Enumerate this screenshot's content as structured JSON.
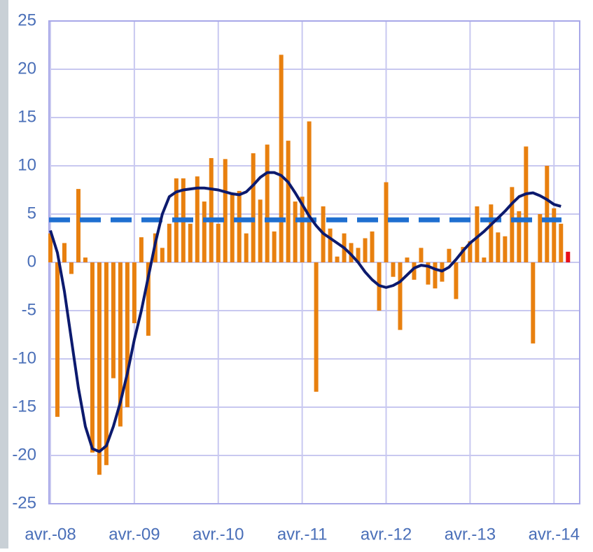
{
  "chart_data": {
    "type": "bar",
    "categories": [
      "avr.-08",
      null,
      null,
      null,
      null,
      null,
      null,
      null,
      null,
      null,
      null,
      null,
      "avr.-09",
      null,
      null,
      null,
      null,
      null,
      null,
      null,
      null,
      null,
      null,
      null,
      "avr.-10",
      null,
      null,
      null,
      null,
      null,
      null,
      null,
      null,
      null,
      null,
      null,
      "avr.-11",
      null,
      null,
      null,
      null,
      null,
      null,
      null,
      null,
      null,
      null,
      null,
      "avr.-12",
      null,
      null,
      null,
      null,
      null,
      null,
      null,
      null,
      null,
      null,
      null,
      "avr.-13",
      null,
      null,
      null,
      null,
      null,
      null,
      null,
      null,
      null,
      null,
      null,
      "avr.-14",
      null,
      null
    ],
    "series": [
      {
        "type": "bar",
        "color": "#e8800f",
        "values": [
          3,
          -16,
          2,
          -1.2,
          7.6,
          0.5,
          -19.7,
          -22,
          -21,
          -12,
          -17,
          -15,
          -6.3,
          2.6,
          -7.6,
          3,
          1.5,
          4,
          8.7,
          8.7,
          4,
          8.9,
          6.3,
          10.8,
          4,
          10.7,
          7,
          7.4,
          3,
          11.3,
          6.5,
          12.2,
          3.2,
          21.5,
          12.6,
          6.3,
          6.8,
          14.6,
          -13.4,
          5.8,
          3.5,
          0.6,
          3,
          2,
          1.5,
          2.5,
          3.2,
          -5,
          8.3,
          -1.5,
          -7,
          0.5,
          -1.8,
          1.5,
          -2.3,
          -2.7,
          -2,
          1.4,
          -3.8,
          1.6,
          2.2,
          5.8,
          0.5,
          6,
          3.1,
          2.7,
          7.8,
          5.3,
          12,
          -8.4,
          5,
          10,
          5.6,
          4,
          null
        ]
      },
      {
        "type": "bar",
        "color": "#e8101a",
        "values": [
          null,
          null,
          null,
          null,
          null,
          null,
          null,
          null,
          null,
          null,
          null,
          null,
          null,
          null,
          null,
          null,
          null,
          null,
          null,
          null,
          null,
          null,
          null,
          null,
          null,
          null,
          null,
          null,
          null,
          null,
          null,
          null,
          null,
          null,
          null,
          null,
          null,
          null,
          null,
          null,
          null,
          null,
          null,
          null,
          null,
          null,
          null,
          null,
          null,
          null,
          null,
          null,
          null,
          null,
          null,
          null,
          null,
          null,
          null,
          null,
          null,
          null,
          null,
          null,
          null,
          null,
          null,
          null,
          null,
          null,
          null,
          null,
          null,
          null,
          1.1
        ]
      },
      {
        "type": "line",
        "color": "#0c1a6e",
        "values": [
          3.3,
          1,
          -3,
          -8,
          -13,
          -17,
          -19.3,
          -19.6,
          -19,
          -17,
          -14.5,
          -11.5,
          -8,
          -5,
          -1.5,
          2,
          5,
          6.8,
          7.3,
          7.5,
          7.6,
          7.7,
          7.7,
          7.6,
          7.5,
          7.3,
          7.1,
          7,
          7.3,
          8,
          8.8,
          9.3,
          9.3,
          9,
          8.3,
          7.2,
          6,
          4.8,
          3.8,
          3,
          2.5,
          2,
          1.5,
          0.8,
          0,
          -1,
          -1.8,
          -2.4,
          -2.6,
          -2.4,
          -2,
          -1.3,
          -0.6,
          -0.3,
          -0.4,
          -0.7,
          -0.9,
          -0.5,
          0.3,
          1.2,
          2,
          2.6,
          3.2,
          3.9,
          4.6,
          5.3,
          6.1,
          6.8,
          7.1,
          7.2,
          6.9,
          6.5,
          6,
          5.8,
          null
        ]
      }
    ],
    "reference_line": {
      "value": 4.4,
      "color": "#1f6fd0",
      "dashed": true
    },
    "ylim": [
      -25,
      25
    ],
    "yticks": [
      25,
      20,
      15,
      10,
      5,
      0,
      -5,
      -10,
      -15,
      -20,
      -25
    ],
    "grid": true
  }
}
